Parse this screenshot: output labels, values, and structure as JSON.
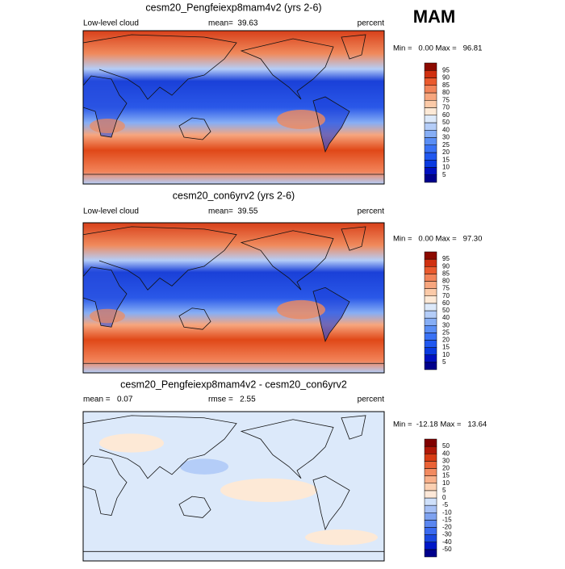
{
  "header": {
    "season": "MAM"
  },
  "panels": [
    {
      "title": "cesm20_Pengfeiexp8mam4v2 (yrs 2-6)",
      "left_label": "Low-level cloud",
      "center_label": "mean=  39.63",
      "units": "percent",
      "min_max": "Min =   0.00 Max =   96.81",
      "colorbar": {
        "labels": [
          5,
          10,
          15,
          20,
          25,
          30,
          40,
          50,
          60,
          70,
          75,
          80,
          85,
          90,
          95
        ],
        "colors": [
          "#00008c",
          "#0010c0",
          "#0a3ae0",
          "#2058f0",
          "#3a72f5",
          "#5a8ef5",
          "#86aef5",
          "#b4cdf8",
          "#dce9fa",
          "#fde9d6",
          "#fbcaa8",
          "#f7a67e",
          "#f2845a",
          "#ea5a2e",
          "#d03010",
          "#8c0a00"
        ]
      }
    },
    {
      "title": "cesm20_con6yrv2 (yrs 2-6)",
      "left_label": "Low-level cloud",
      "center_label": "mean=  39.55",
      "units": "percent",
      "min_max": "Min =   0.00 Max =   97.30",
      "colorbar": {
        "labels": [
          5,
          10,
          15,
          20,
          25,
          30,
          40,
          50,
          60,
          70,
          75,
          80,
          85,
          90,
          95
        ],
        "colors": [
          "#00008c",
          "#0010c0",
          "#0a3ae0",
          "#2058f0",
          "#3a72f5",
          "#5a8ef5",
          "#86aef5",
          "#b4cdf8",
          "#dce9fa",
          "#fde9d6",
          "#fbcaa8",
          "#f7a67e",
          "#f2845a",
          "#ea5a2e",
          "#d03010",
          "#8c0a00"
        ]
      }
    },
    {
      "title": "cesm20_Pengfeiexp8mam4v2 - cesm20_con6yrv2",
      "left_label": "mean =   0.07",
      "center_label": "rmse =   2.55",
      "units": "percent",
      "min_max": "Min =  -12.18 Max =   13.64",
      "colorbar": {
        "labels": [
          -50,
          -40,
          -30,
          -20,
          -15,
          -10,
          -5,
          0,
          5,
          10,
          15,
          20,
          30,
          40,
          50
        ],
        "colors": [
          "#00008c",
          "#0018c8",
          "#1a48e0",
          "#3a6af0",
          "#5a86f0",
          "#7ea2f0",
          "#a6c0f5",
          "#cfe0fa",
          "#fde8d8",
          "#fbd0b2",
          "#f8b08a",
          "#f28a60",
          "#ea6236",
          "#d83c14",
          "#b01808",
          "#800000"
        ]
      }
    }
  ]
}
